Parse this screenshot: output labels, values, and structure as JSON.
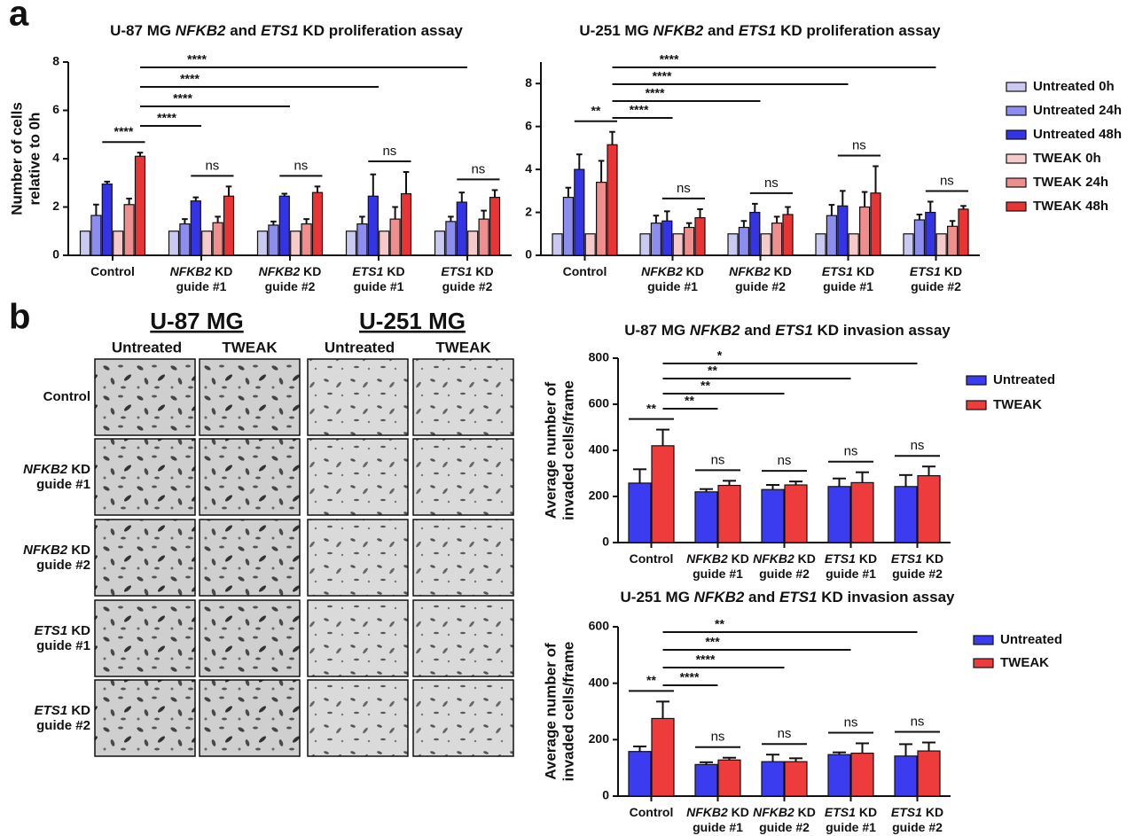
{
  "chart_data": [
    {
      "type": "bar",
      "title": "U-87 MG NFKB2 and ETS1 KD proliferation assay",
      "ylabel": [
        "Number of cells",
        "relative to 0h"
      ],
      "categories": [
        "Control",
        "NFKB2 KD guide #1",
        "NFKB2 KD guide #2",
        "ETS1 KD guide #1",
        "ETS1 KD guide #2"
      ],
      "series": [
        {
          "name": "Untreated 0h",
          "color": "#c9c9f2",
          "values": [
            1,
            1,
            1,
            1,
            1
          ],
          "errors": [
            null,
            null,
            null,
            null,
            null
          ]
        },
        {
          "name": "Untreated 24h",
          "color": "#8d8def",
          "values": [
            1.65,
            1.3,
            1.25,
            1.3,
            1.4
          ],
          "errors": [
            0.45,
            0.2,
            0.15,
            0.3,
            0.2
          ]
        },
        {
          "name": "Untreated 48h",
          "color": "#3434e4",
          "values": [
            2.95,
            2.25,
            2.45,
            2.45,
            2.2
          ],
          "errors": [
            0.1,
            0.15,
            0.1,
            0.9,
            0.4
          ]
        },
        {
          "name": "TWEAK 0h",
          "color": "#f6caca",
          "values": [
            1,
            1,
            1,
            1,
            1
          ],
          "errors": [
            null,
            null,
            null,
            null,
            null
          ]
        },
        {
          "name": "TWEAK 24h",
          "color": "#f08d8d",
          "values": [
            2.1,
            1.35,
            1.3,
            1.5,
            1.5
          ],
          "errors": [
            0.25,
            0.25,
            0.2,
            0.5,
            0.35
          ]
        },
        {
          "name": "TWEAK 48h",
          "color": "#e83434",
          "values": [
            4.1,
            2.45,
            2.6,
            2.55,
            2.4
          ],
          "errors": [
            0.15,
            0.4,
            0.25,
            0.9,
            0.3
          ]
        }
      ],
      "ylim": [
        0,
        8
      ],
      "yticks": [
        0,
        2,
        4,
        6,
        8
      ],
      "within_labels": [
        "****",
        "ns",
        "ns",
        "ns",
        "ns"
      ],
      "vs_control_labels": [
        "****",
        "****",
        "****",
        "****"
      ],
      "legend": "none"
    },
    {
      "type": "bar",
      "title": "U-251 MG NFKB2 and ETS1 KD proliferation assay",
      "categories": [
        "Control",
        "NFKB2 KD guide #1",
        "NFKB2 KD guide #2",
        "ETS1 KD guide #1",
        "ETS1 KD guide #2"
      ],
      "series": [
        {
          "name": "Untreated 0h",
          "color": "#c9c9f2",
          "values": [
            1,
            1,
            1,
            1,
            1
          ],
          "errors": [
            null,
            null,
            null,
            null,
            null
          ]
        },
        {
          "name": "Untreated 24h",
          "color": "#8d8def",
          "values": [
            2.7,
            1.5,
            1.3,
            1.85,
            1.65
          ],
          "errors": [
            0.45,
            0.35,
            0.3,
            0.5,
            0.25
          ]
        },
        {
          "name": "Untreated 48h",
          "color": "#3434e4",
          "values": [
            4.0,
            1.6,
            2.0,
            2.3,
            2.0
          ],
          "errors": [
            0.7,
            0.45,
            0.4,
            0.7,
            0.5
          ]
        },
        {
          "name": "TWEAK 0h",
          "color": "#f6caca",
          "values": [
            1,
            1,
            1,
            1,
            1
          ],
          "errors": [
            null,
            null,
            null,
            null,
            null
          ]
        },
        {
          "name": "TWEAK 24h",
          "color": "#f08d8d",
          "values": [
            3.4,
            1.3,
            1.5,
            2.25,
            1.35
          ],
          "errors": [
            1.0,
            0.2,
            0.3,
            0.7,
            0.25
          ]
        },
        {
          "name": "TWEAK 48h",
          "color": "#e83434",
          "values": [
            5.15,
            1.75,
            1.9,
            2.9,
            2.15
          ],
          "errors": [
            0.6,
            0.4,
            0.35,
            1.25,
            0.15
          ]
        }
      ],
      "ylim": [
        0,
        9
      ],
      "yticks": [
        0,
        2,
        4,
        6,
        8
      ],
      "within_labels": [
        "**",
        "ns",
        "ns",
        "ns",
        "ns"
      ],
      "vs_control_labels": [
        "****",
        "****",
        "****",
        "****"
      ],
      "legend": "right"
    },
    {
      "type": "bar",
      "title": "U-87 MG NFKB2 and ETS1 KD invasion assay",
      "ylabel": [
        "Average number of",
        "invaded cells/frame"
      ],
      "categories": [
        "Control",
        "NFKB2 KD guide #1",
        "NFKB2 KD guide #2",
        "ETS1 KD guide #1",
        "ETS1 KD guide #2"
      ],
      "series": [
        {
          "name": "Untreated",
          "color": "#3b3bf0",
          "values": [
            258,
            220,
            230,
            243,
            243
          ],
          "errors": [
            60,
            12,
            20,
            35,
            50
          ]
        },
        {
          "name": "TWEAK",
          "color": "#ee3b3b",
          "values": [
            420,
            248,
            250,
            260,
            290
          ],
          "errors": [
            70,
            20,
            15,
            45,
            40
          ]
        }
      ],
      "ylim": [
        0,
        800
      ],
      "yticks": [
        0,
        200,
        400,
        600,
        800
      ],
      "within_labels": [
        "**",
        "ns",
        "ns",
        "ns",
        "ns"
      ],
      "vs_control_labels": [
        "**",
        "**",
        "**",
        "*"
      ],
      "legend": "right"
    },
    {
      "type": "bar",
      "title": "U-251 MG NFKB2 and ETS1 KD invasion assay",
      "ylabel": [
        "Average number of",
        "invaded cells/frame"
      ],
      "categories": [
        "Control",
        "NFKB2 KD guide #1",
        "NFKB2 KD guide #2",
        "ETS1 KD guide #1",
        "ETS1 KD guide #2"
      ],
      "series": [
        {
          "name": "Untreated",
          "color": "#3b3bf0",
          "values": [
            158,
            112,
            122,
            147,
            142
          ],
          "errors": [
            18,
            8,
            25,
            8,
            42
          ]
        },
        {
          "name": "TWEAK",
          "color": "#ee3b3b",
          "values": [
            275,
            128,
            122,
            152,
            160
          ],
          "errors": [
            60,
            8,
            12,
            35,
            30
          ]
        }
      ],
      "ylim": [
        0,
        600
      ],
      "yticks": [
        0,
        200,
        400,
        600
      ],
      "within_labels": [
        "**",
        "ns",
        "ns",
        "ns",
        "ns"
      ],
      "vs_control_labels": [
        "****",
        "****",
        "***",
        "**"
      ],
      "legend": "right"
    }
  ],
  "panels": [
    "a",
    "b"
  ],
  "images": {
    "groups": [
      "U-87 MG",
      "U-251 MG"
    ],
    "columns": [
      "Untreated",
      "TWEAK",
      "Untreated",
      "TWEAK"
    ],
    "rows": [
      "Control",
      "NFKB2 KD guide #1",
      "NFKB2 KD guide #2",
      "ETS1 KD guide #1",
      "ETS1 KD guide #2"
    ]
  }
}
